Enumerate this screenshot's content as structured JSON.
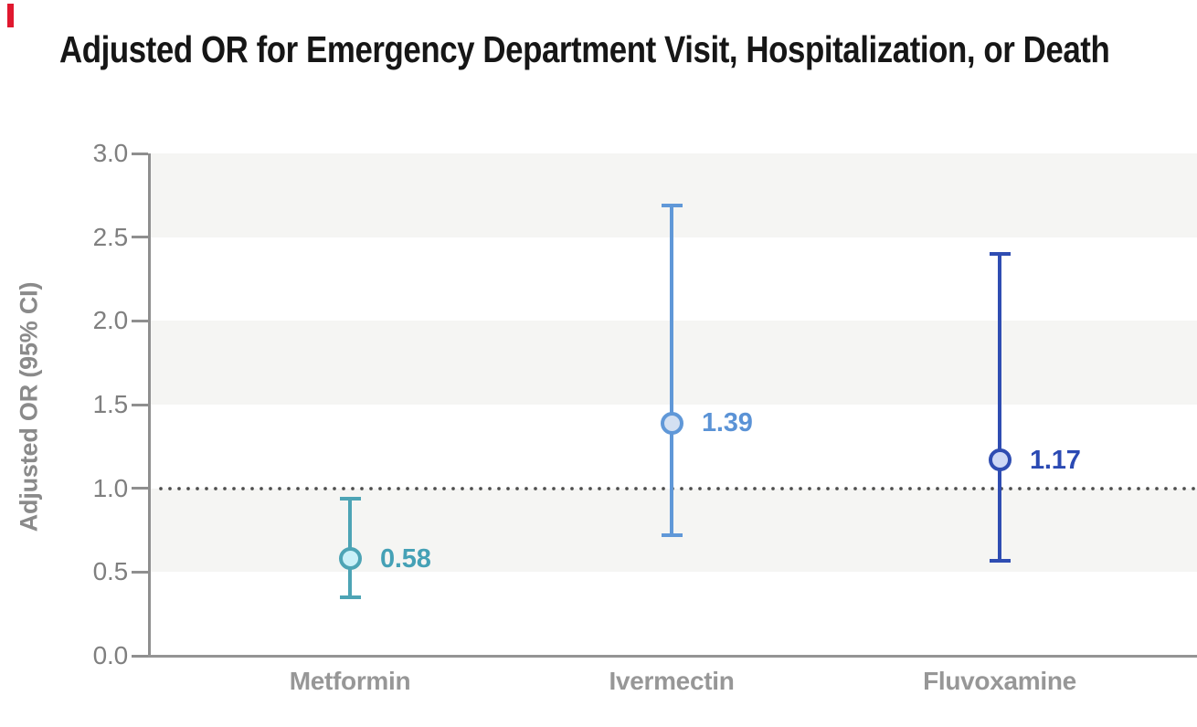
{
  "figure": {
    "accent_bar_color": "#e0182f",
    "background": "#ffffff",
    "band_color": "#f5f5f3",
    "axis_color": "#8f8f8f",
    "tick_label_color": "#7f7f7f",
    "category_label_color": "#979797"
  },
  "chart_data": {
    "type": "scatter",
    "subtype": "point-estimate-with-95CI-error-bars",
    "title": "Adjusted OR for Emergency Department Visit, Hospitalization, or Death",
    "xlabel": "",
    "ylabel": "Adjusted OR (95% CI)",
    "ylim": [
      0.0,
      3.0
    ],
    "ytick_labels": [
      "3.0",
      "2.5",
      "2.0",
      "1.5",
      "1.0",
      "0.5",
      "0.0"
    ],
    "ytick_values": [
      3.0,
      2.5,
      2.0,
      1.5,
      1.0,
      0.5,
      0.0
    ],
    "reference_line_y": 1.0,
    "reference_line_style": "dotted",
    "grid": "alternating horizontal shaded bands between 0.5-1.0, 1.5-2.0, 2.5-3.0",
    "legend": "none",
    "categories": [
      "Metformin",
      "Ivermectin",
      "Fluvoxamine"
    ],
    "series": [
      {
        "name": "Metformin",
        "or": 0.58,
        "or_label": "0.58",
        "ci_low": 0.35,
        "ci_high": 0.94,
        "stroke": "#4da4b5",
        "fill": "#c9f0f8",
        "label_color": "#45a1b6"
      },
      {
        "name": "Ivermectin",
        "or": 1.39,
        "or_label": "1.39",
        "ci_low": 0.72,
        "ci_high": 2.69,
        "stroke": "#6098d8",
        "fill": "#d3e0f2",
        "label_color": "#5b93d6"
      },
      {
        "name": "Fluvoxamine",
        "or": 1.17,
        "or_label": "1.17",
        "ci_low": 0.57,
        "ci_high": 2.4,
        "stroke": "#2f4db2",
        "fill": "#cdd8f5",
        "label_color": "#2b4ab3"
      }
    ]
  }
}
